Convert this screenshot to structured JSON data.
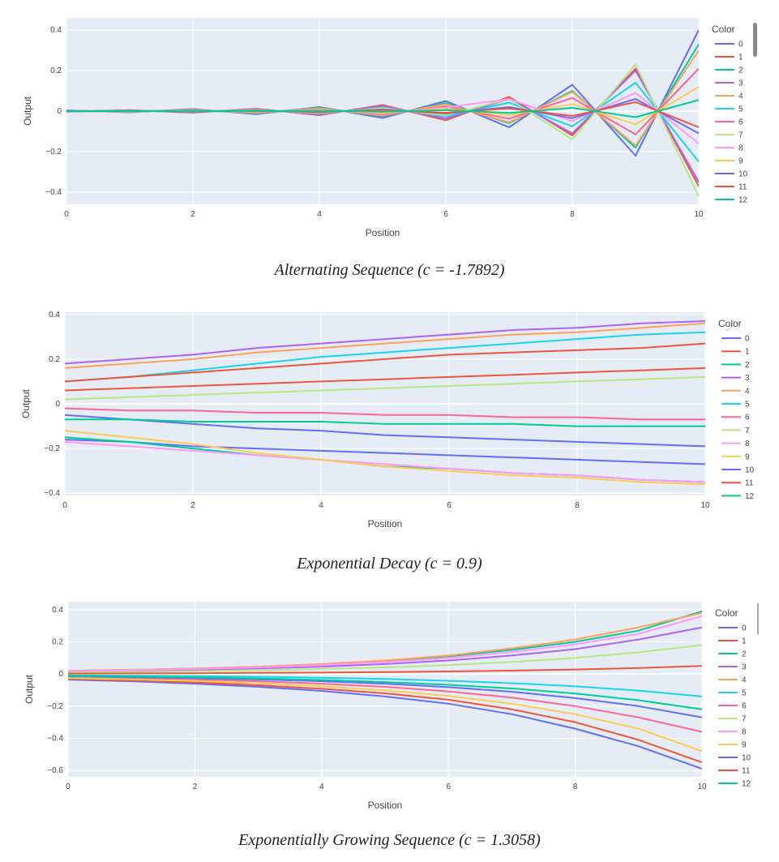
{
  "captions": [
    "Alternating Sequence (c = -1.7892)",
    "Exponential Decay (c = 0.9)",
    "Exponentially Growing Sequence (c = 1.3058)"
  ],
  "palette": [
    "#636efa",
    "#ef553b",
    "#00cc96",
    "#ab63fa",
    "#ffa15a",
    "#19d3f3",
    "#ff6692",
    "#b6e880",
    "#ff97ff",
    "#fecb52"
  ],
  "chart_data": [
    {
      "type": "line",
      "xlabel": "Position",
      "ylabel": "Output",
      "xlim": [
        0,
        10
      ],
      "ylim": [
        -0.46,
        0.46
      ],
      "x_ticks": [
        0,
        2,
        4,
        6,
        8,
        10
      ],
      "y_ticks": [
        -0.4,
        -0.2,
        0,
        0.2,
        0.4
      ],
      "y_tick_labels": [
        "−0.4",
        "−0.2",
        "0",
        "0.2",
        "0.4"
      ],
      "legend_title": "Color",
      "legend_entries": [
        "0",
        "1",
        "2",
        "3",
        "4",
        "5",
        "6",
        "7",
        "8",
        "9",
        "10",
        "11",
        "12"
      ],
      "legend_position": "right",
      "x": [
        0,
        1,
        2,
        3,
        4,
        5,
        6,
        7,
        8,
        9,
        10
      ],
      "series": [
        {
          "name": "0",
          "values": [
            0.004,
            -0.006,
            0.01,
            -0.015,
            0.02,
            -0.034,
            0.05,
            -0.08,
            0.13,
            -0.22,
            0.4
          ]
        },
        {
          "name": "1",
          "values": [
            -0.003,
            0.005,
            -0.008,
            0.012,
            -0.02,
            0.03,
            -0.045,
            0.07,
            -0.12,
            0.21,
            -0.37
          ]
        },
        {
          "name": "2",
          "values": [
            0.002,
            -0.004,
            0.007,
            -0.011,
            0.018,
            -0.026,
            0.04,
            -0.06,
            0.1,
            -0.18,
            0.33
          ]
        },
        {
          "name": "3",
          "values": [
            -0.002,
            0.004,
            -0.006,
            0.01,
            -0.016,
            0.024,
            -0.036,
            0.06,
            -0.11,
            0.2,
            -0.35
          ]
        },
        {
          "name": "4",
          "values": [
            0.002,
            -0.003,
            0.006,
            -0.009,
            0.014,
            -0.022,
            0.034,
            -0.056,
            0.095,
            -0.17,
            0.3
          ]
        },
        {
          "name": "5",
          "values": [
            -0.001,
            0.002,
            -0.004,
            0.007,
            -0.011,
            0.017,
            -0.026,
            0.042,
            -0.075,
            0.14,
            -0.25
          ]
        },
        {
          "name": "6",
          "values": [
            0.001,
            -0.002,
            0.004,
            -0.006,
            0.01,
            -0.015,
            0.023,
            -0.037,
            0.065,
            -0.115,
            0.21
          ]
        },
        {
          "name": "7",
          "values": [
            -0.001,
            0.002,
            -0.003,
            0.006,
            -0.009,
            0.014,
            -0.021,
            0.06,
            -0.14,
            0.23,
            -0.42
          ]
        },
        {
          "name": "8",
          "values": [
            0.001,
            -0.001,
            0.002,
            -0.004,
            0.007,
            -0.011,
            0.017,
            0.06,
            -0.05,
            0.09,
            -0.16
          ]
        },
        {
          "name": "9",
          "values": [
            0.0,
            -0.001,
            0.002,
            -0.003,
            0.005,
            -0.008,
            0.012,
            -0.02,
            0.035,
            -0.065,
            0.12
          ]
        },
        {
          "name": "10",
          "values": [
            -0.001,
            0.001,
            -0.002,
            0.003,
            -0.005,
            0.008,
            -0.012,
            0.02,
            -0.035,
            0.06,
            -0.11
          ]
        },
        {
          "name": "11",
          "values": [
            0.0,
            0.001,
            -0.001,
            0.002,
            -0.003,
            0.005,
            -0.008,
            0.013,
            -0.024,
            0.045,
            -0.08
          ]
        },
        {
          "name": "12",
          "values": [
            0.0,
            0.0,
            0.001,
            -0.001,
            0.002,
            -0.003,
            0.005,
            -0.009,
            0.016,
            -0.03,
            0.055
          ]
        }
      ]
    },
    {
      "type": "line",
      "xlabel": "Position",
      "ylabel": "Output",
      "xlim": [
        0,
        10
      ],
      "ylim": [
        -0.41,
        0.41
      ],
      "x_ticks": [
        0,
        2,
        4,
        6,
        8,
        10
      ],
      "y_ticks": [
        -0.4,
        -0.2,
        0,
        0.2,
        0.4
      ],
      "y_tick_labels": [
        "−0.4",
        "−0.2",
        "0",
        "0.2",
        "0.4"
      ],
      "legend_title": "Color",
      "legend_entries": [
        "0",
        "1",
        "2",
        "3",
        "4",
        "5",
        "6",
        "7",
        "8",
        "9",
        "10",
        "11",
        "12"
      ],
      "legend_position": "right",
      "x": [
        0,
        1,
        2,
        3,
        4,
        5,
        6,
        7,
        8,
        9,
        10
      ],
      "series": [
        {
          "name": "0",
          "values": [
            -0.16,
            -0.17,
            -0.19,
            -0.2,
            -0.21,
            -0.22,
            -0.23,
            -0.24,
            -0.25,
            -0.26,
            -0.27
          ]
        },
        {
          "name": "1",
          "values": [
            0.06,
            0.07,
            0.08,
            0.09,
            0.1,
            0.11,
            0.12,
            0.13,
            0.14,
            0.15,
            0.16
          ]
        },
        {
          "name": "2",
          "values": [
            -0.15,
            -0.17,
            -0.2,
            -0.23,
            -0.25,
            -0.28,
            -0.29,
            -0.31,
            -0.32,
            -0.34,
            -0.35
          ]
        },
        {
          "name": "3",
          "values": [
            0.18,
            0.2,
            0.22,
            0.25,
            0.27,
            0.29,
            0.31,
            0.33,
            0.34,
            0.36,
            0.37
          ]
        },
        {
          "name": "4",
          "values": [
            0.16,
            0.18,
            0.2,
            0.23,
            0.25,
            0.27,
            0.29,
            0.31,
            0.32,
            0.34,
            0.36
          ]
        },
        {
          "name": "5",
          "values": [
            0.1,
            0.12,
            0.15,
            0.18,
            0.21,
            0.23,
            0.25,
            0.27,
            0.29,
            0.31,
            0.32
          ]
        },
        {
          "name": "6",
          "values": [
            -0.02,
            -0.03,
            -0.03,
            -0.04,
            -0.04,
            -0.05,
            -0.05,
            -0.06,
            -0.06,
            -0.07,
            -0.07
          ]
        },
        {
          "name": "7",
          "values": [
            0.02,
            0.03,
            0.04,
            0.05,
            0.06,
            0.07,
            0.08,
            0.09,
            0.1,
            0.11,
            0.12
          ]
        },
        {
          "name": "8",
          "values": [
            -0.17,
            -0.19,
            -0.21,
            -0.23,
            -0.25,
            -0.27,
            -0.29,
            -0.31,
            -0.32,
            -0.34,
            -0.35
          ]
        },
        {
          "name": "9",
          "values": [
            -0.12,
            -0.15,
            -0.18,
            -0.22,
            -0.25,
            -0.28,
            -0.3,
            -0.32,
            -0.33,
            -0.35,
            -0.36
          ]
        },
        {
          "name": "10",
          "values": [
            -0.05,
            -0.07,
            -0.09,
            -0.11,
            -0.12,
            -0.14,
            -0.15,
            -0.16,
            -0.17,
            -0.18,
            -0.19
          ]
        },
        {
          "name": "11",
          "values": [
            0.1,
            0.12,
            0.14,
            0.16,
            0.18,
            0.2,
            0.22,
            0.23,
            0.24,
            0.25,
            0.27
          ]
        },
        {
          "name": "12",
          "values": [
            -0.07,
            -0.07,
            -0.08,
            -0.08,
            -0.08,
            -0.09,
            -0.09,
            -0.09,
            -0.1,
            -0.1,
            -0.1
          ]
        }
      ]
    },
    {
      "type": "line",
      "xlabel": "Position",
      "ylabel": "Output",
      "xlim": [
        0,
        10
      ],
      "ylim": [
        -0.64,
        0.45
      ],
      "x_ticks": [
        0,
        2,
        4,
        6,
        8,
        10
      ],
      "y_ticks": [
        -0.6,
        -0.4,
        -0.2,
        0,
        0.2,
        0.4
      ],
      "y_tick_labels": [
        "−0.6",
        "−0.4",
        "−0.2",
        "0",
        "0.2",
        "0.4"
      ],
      "legend_title": "Color",
      "legend_entries": [
        "0",
        "1",
        "2",
        "3",
        "4",
        "5",
        "6",
        "7",
        "8",
        "9",
        "10",
        "11",
        "12"
      ],
      "legend_position": "right",
      "x": [
        0,
        1,
        2,
        3,
        4,
        5,
        6,
        7,
        8,
        9,
        10
      ],
      "series": [
        {
          "name": "0",
          "values": [
            -0.035,
            -0.045,
            -0.06,
            -0.08,
            -0.105,
            -0.14,
            -0.185,
            -0.25,
            -0.34,
            -0.45,
            -0.59
          ]
        },
        {
          "name": "1",
          "values": [
            -0.03,
            -0.04,
            -0.052,
            -0.07,
            -0.092,
            -0.12,
            -0.16,
            -0.22,
            -0.3,
            -0.41,
            -0.55
          ]
        },
        {
          "name": "2",
          "values": [
            0.02,
            0.026,
            0.034,
            0.045,
            0.06,
            0.08,
            0.11,
            0.15,
            0.2,
            0.27,
            0.39
          ]
        },
        {
          "name": "3",
          "values": [
            0.015,
            0.02,
            0.026,
            0.035,
            0.046,
            0.062,
            0.084,
            0.115,
            0.155,
            0.215,
            0.29
          ]
        },
        {
          "name": "4",
          "values": [
            0.02,
            0.026,
            0.034,
            0.046,
            0.062,
            0.084,
            0.115,
            0.16,
            0.215,
            0.29,
            0.38
          ]
        },
        {
          "name": "5",
          "values": [
            -0.008,
            -0.01,
            -0.013,
            -0.017,
            -0.023,
            -0.031,
            -0.042,
            -0.057,
            -0.077,
            -0.103,
            -0.14
          ]
        },
        {
          "name": "6",
          "values": [
            -0.02,
            -0.026,
            -0.034,
            -0.045,
            -0.06,
            -0.08,
            -0.108,
            -0.147,
            -0.2,
            -0.27,
            -0.36
          ]
        },
        {
          "name": "7",
          "values": [
            0.01,
            0.013,
            0.017,
            0.023,
            0.031,
            0.041,
            0.055,
            0.075,
            0.1,
            0.135,
            0.18
          ]
        },
        {
          "name": "8",
          "values": [
            0.018,
            0.024,
            0.031,
            0.041,
            0.055,
            0.074,
            0.1,
            0.137,
            0.185,
            0.25,
            0.36
          ]
        },
        {
          "name": "9",
          "values": [
            -0.025,
            -0.033,
            -0.043,
            -0.057,
            -0.076,
            -0.101,
            -0.137,
            -0.185,
            -0.25,
            -0.34,
            -0.48
          ]
        },
        {
          "name": "10",
          "values": [
            -0.015,
            -0.02,
            -0.026,
            -0.034,
            -0.045,
            -0.06,
            -0.082,
            -0.11,
            -0.15,
            -0.2,
            -0.27
          ]
        },
        {
          "name": "11",
          "values": [
            0.003,
            0.004,
            0.005,
            0.007,
            0.009,
            0.012,
            0.016,
            0.021,
            0.028,
            0.037,
            0.05
          ]
        },
        {
          "name": "12",
          "values": [
            -0.012,
            -0.016,
            -0.021,
            -0.028,
            -0.037,
            -0.05,
            -0.067,
            -0.09,
            -0.121,
            -0.163,
            -0.22
          ]
        }
      ]
    }
  ]
}
